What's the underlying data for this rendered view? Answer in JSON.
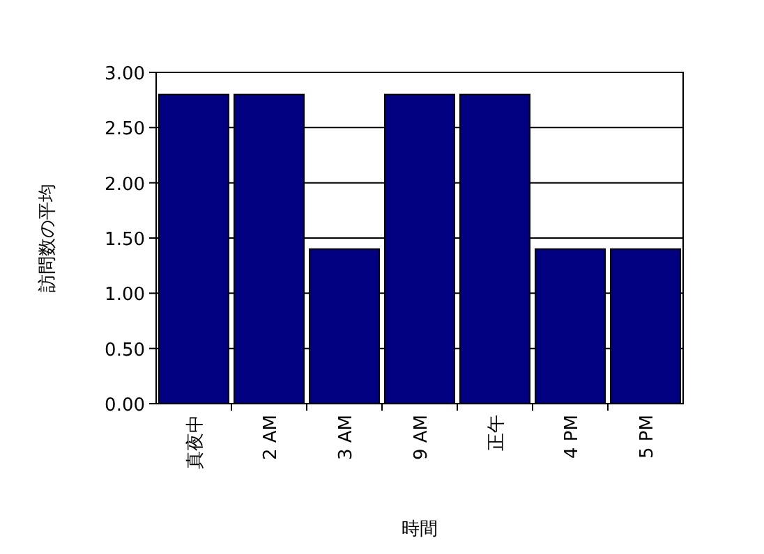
{
  "chart_data": {
    "type": "bar",
    "xlabel": "時間",
    "ylabel": "訪問数の平均",
    "categories": [
      "真夜中",
      "2 AM",
      "3 AM",
      "9 AM",
      "正午",
      "4 PM",
      "5 PM"
    ],
    "values": [
      2.8,
      2.8,
      1.4,
      2.8,
      2.8,
      1.4,
      1.4
    ],
    "color": "#000080",
    "ylim": [
      0,
      3
    ],
    "yticks": [
      {
        "value": 0,
        "label": "0.00"
      },
      {
        "value": 0.5,
        "label": "0.50"
      },
      {
        "value": 1,
        "label": "1.00"
      },
      {
        "value": 1.5,
        "label": "1.50"
      },
      {
        "value": 2,
        "label": "2.00"
      },
      {
        "value": 2.5,
        "label": "2.50"
      },
      {
        "value": 3,
        "label": "3.00"
      }
    ],
    "grid": "y"
  }
}
